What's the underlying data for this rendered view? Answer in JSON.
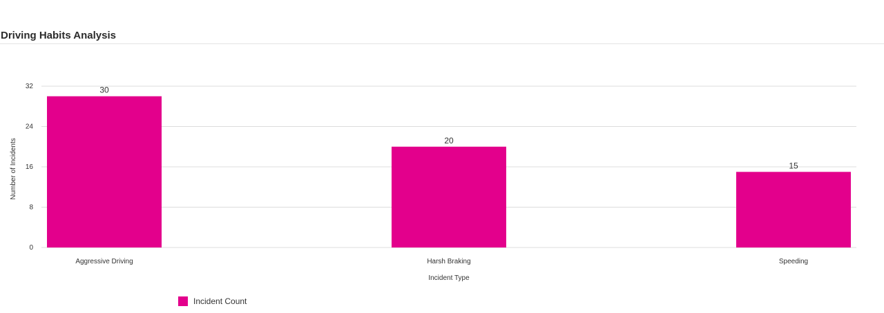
{
  "page": {
    "title": "Driving Habits Analysis"
  },
  "chart_data": {
    "type": "bar",
    "categories": [
      "Aggressive Driving",
      "Harsh Braking",
      "Speeding"
    ],
    "series": [
      {
        "name": "Incident Count",
        "values": [
          30,
          20,
          15
        ],
        "color": "#e3008c"
      }
    ],
    "xlabel": "Incident Type",
    "ylabel": "Number of Incidents",
    "ylim": [
      0,
      32
    ],
    "yticks": [
      0,
      8,
      16,
      24,
      32
    ],
    "grid": true,
    "data_labels": true,
    "legend_position": "bottom-left"
  }
}
